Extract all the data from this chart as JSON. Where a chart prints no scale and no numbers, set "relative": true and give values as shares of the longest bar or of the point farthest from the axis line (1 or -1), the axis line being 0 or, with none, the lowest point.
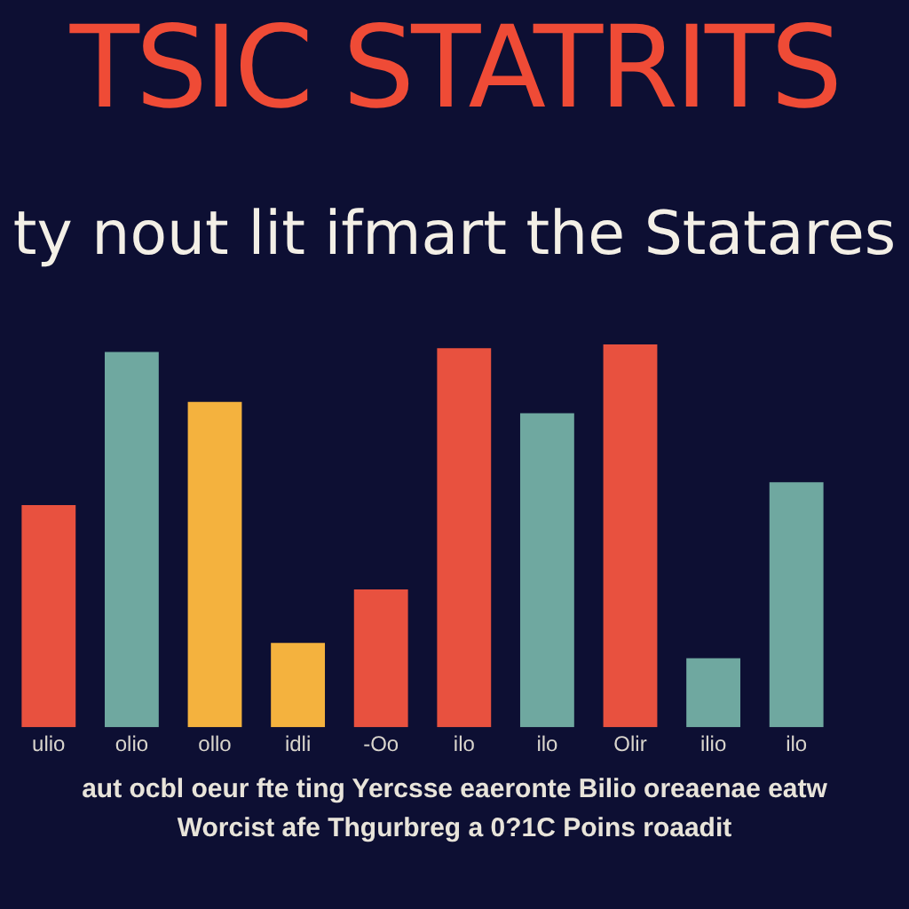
{
  "chart_data": {
    "type": "bar",
    "title": "TSIC STATRITS",
    "subtitle": "ty nout lit ifmart the Statares",
    "categories": [
      "ulio",
      "olio",
      "ollo",
      "idli",
      "-Oo",
      "ilo",
      "ilo",
      "Olir",
      "ilio",
      "ilo"
    ],
    "values": [
      0.58,
      0.98,
      0.85,
      0.22,
      0.36,
      0.99,
      0.82,
      1,
      0.18,
      0.64
    ],
    "colors": [
      "#e8513f",
      "#6fa8a0",
      "#f4b23e",
      "#f4b23e",
      "#e8513f",
      "#e8513f",
      "#6fa8a0",
      "#e8513f",
      "#6fa8a0",
      "#6fa8a0"
    ],
    "relative": true,
    "grid": false,
    "legend": false,
    "annotations": [
      "aut ocbl oeur fte ting Yercsse eaeronte Bilio oreaenae eatw",
      "Worcist afe Thgurbreg a 0?1C Poins roaadit"
    ]
  }
}
